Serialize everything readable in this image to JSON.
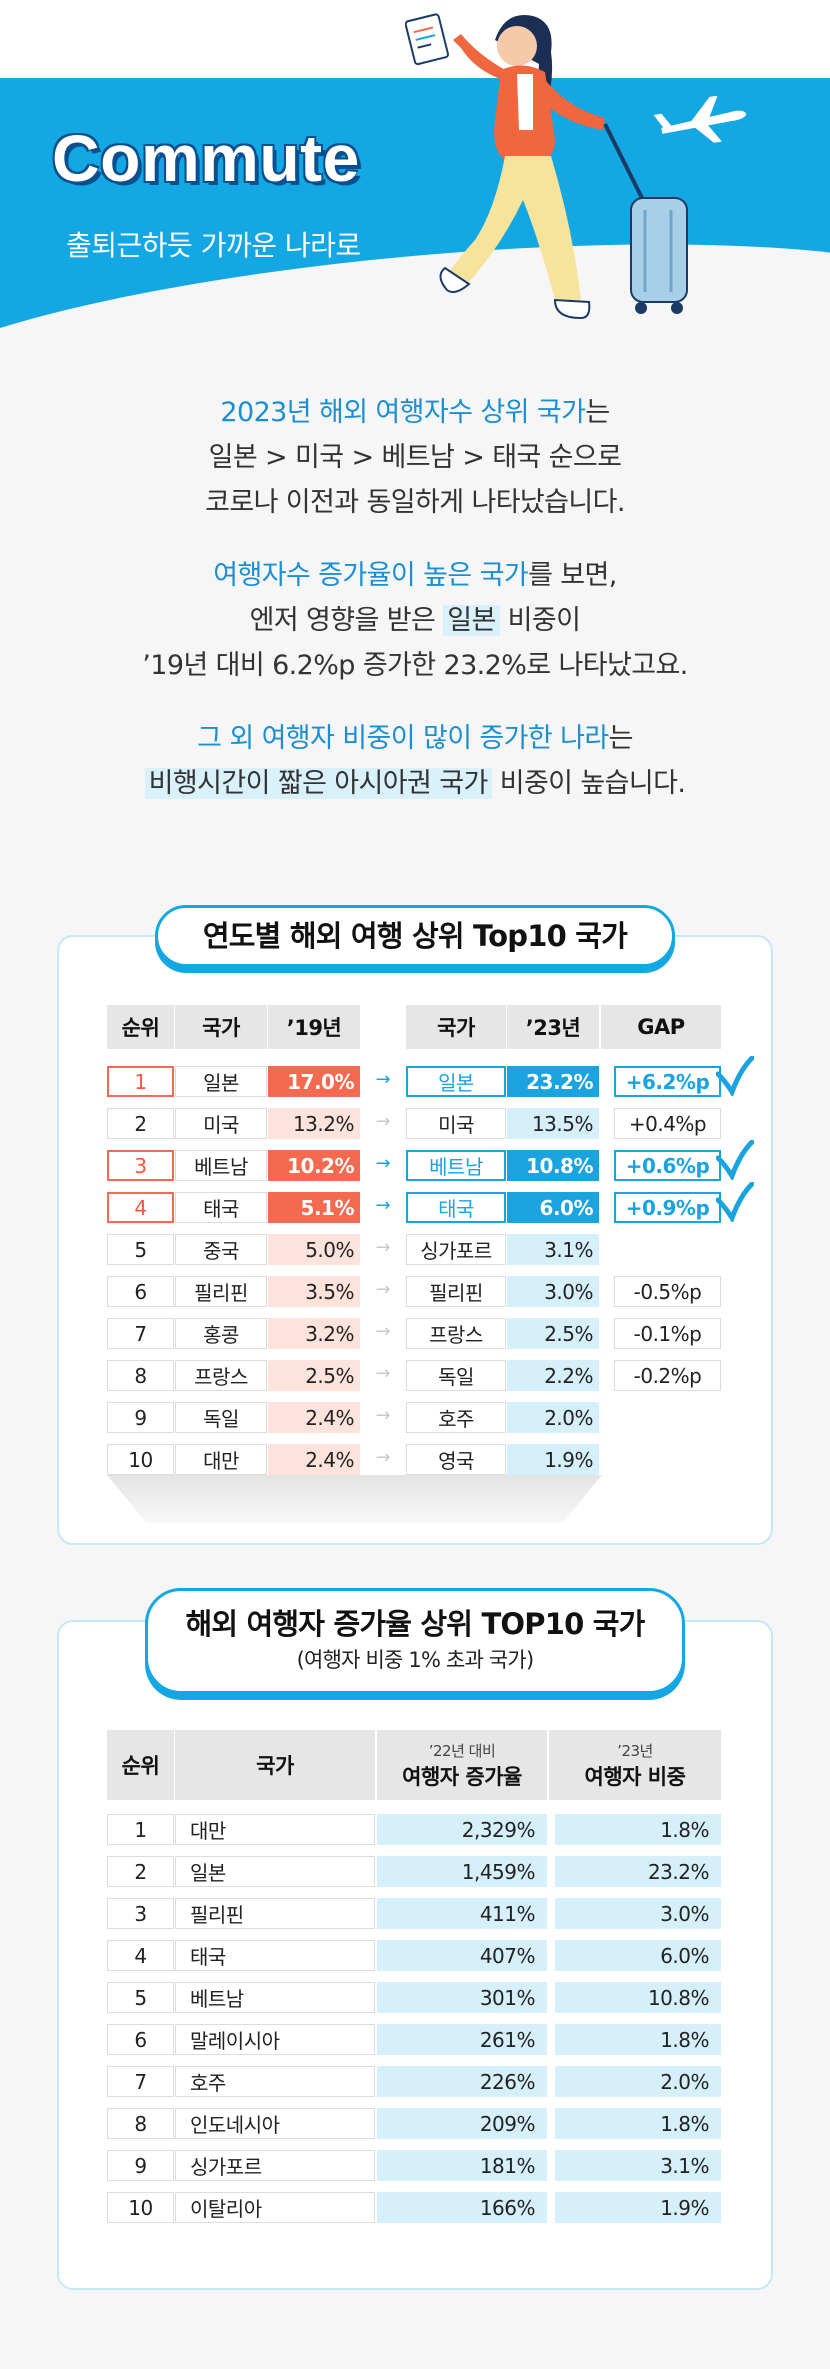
{
  "header": {
    "title": "Commute",
    "subtitle": "출퇴근하듯 가까운 나라로"
  },
  "intro": {
    "p1": {
      "l1a": "2023년 해외 여행자수 상위 국가",
      "l1b": "는",
      "l2": "일본 > 미국 > 베트남 > 태국 순으로",
      "l3": "코로나 이전과 동일하게 나타났습니다."
    },
    "p2": {
      "l1a": "여행자수 증가율이 높은 국가",
      "l1b": "를 보면,",
      "l2a": "엔저 영향을 받은 ",
      "l2b": "일본",
      "l2c": " 비중이",
      "l3": "’19년 대비 6.2%p 증가한 23.2%로 나타났고요."
    },
    "p3": {
      "l1a": "그 외 여행자 비중이 많이 증가한 나라",
      "l1b": "는",
      "l2a": "비행시간이 짧은 아시아권 국가",
      "l2b": " 비중이 높습니다."
    }
  },
  "table1": {
    "title": "연도별 해외 여행 상위 Top10 국가",
    "headers": {
      "rank": "순위",
      "country19": "국가",
      "y19": "’19년",
      "country23": "국가",
      "y23": "’23년",
      "gap": "GAP"
    },
    "rows": [
      {
        "rank": "1",
        "c19": "일본",
        "v19": "17.0%",
        "c23": "일본",
        "v23": "23.2%",
        "gap": "+6.2%p"
      },
      {
        "rank": "2",
        "c19": "미국",
        "v19": "13.2%",
        "c23": "미국",
        "v23": "13.5%",
        "gap": "+0.4%p"
      },
      {
        "rank": "3",
        "c19": "베트남",
        "v19": "10.2%",
        "c23": "베트남",
        "v23": "10.8%",
        "gap": "+0.6%p"
      },
      {
        "rank": "4",
        "c19": "태국",
        "v19": "5.1%",
        "c23": "태국",
        "v23": "6.0%",
        "gap": "+0.9%p"
      },
      {
        "rank": "5",
        "c19": "중국",
        "v19": "5.0%",
        "c23": "싱가포르",
        "v23": "3.1%",
        "gap": ""
      },
      {
        "rank": "6",
        "c19": "필리핀",
        "v19": "3.5%",
        "c23": "필리핀",
        "v23": "3.0%",
        "gap": "-0.5%p"
      },
      {
        "rank": "7",
        "c19": "홍콩",
        "v19": "3.2%",
        "c23": "프랑스",
        "v23": "2.5%",
        "gap": "-0.1%p"
      },
      {
        "rank": "8",
        "c19": "프랑스",
        "v19": "2.5%",
        "c23": "독일",
        "v23": "2.2%",
        "gap": "-0.2%p"
      },
      {
        "rank": "9",
        "c19": "독일",
        "v19": "2.4%",
        "c23": "호주",
        "v23": "2.0%",
        "gap": ""
      },
      {
        "rank": "10",
        "c19": "대만",
        "v19": "2.4%",
        "c23": "영국",
        "v23": "1.9%",
        "gap": ""
      }
    ]
  },
  "table2": {
    "title": "해외 여행자 증가율 상위 TOP10 국가",
    "subtitle": "(여행자 비중 1% 초과 국가)",
    "headers": {
      "rank": "순위",
      "country": "국가",
      "growth_sm": "’22년 대비",
      "growth_lg": "여행자 증가율",
      "share_sm": "’23년",
      "share_lg": "여행자 비중"
    },
    "rows": [
      {
        "rank": "1",
        "country": "대만",
        "growth": "2,329%",
        "share": "1.8%"
      },
      {
        "rank": "2",
        "country": "일본",
        "growth": "1,459%",
        "share": "23.2%"
      },
      {
        "rank": "3",
        "country": "필리핀",
        "growth": "411%",
        "share": "3.0%"
      },
      {
        "rank": "4",
        "country": "태국",
        "growth": "407%",
        "share": "6.0%"
      },
      {
        "rank": "5",
        "country": "베트남",
        "growth": "301%",
        "share": "10.8%"
      },
      {
        "rank": "6",
        "country": "말레이시아",
        "growth": "261%",
        "share": "1.8%"
      },
      {
        "rank": "7",
        "country": "호주",
        "growth": "226%",
        "share": "2.0%"
      },
      {
        "rank": "8",
        "country": "인도네시아",
        "growth": "209%",
        "share": "1.8%"
      },
      {
        "rank": "9",
        "country": "싱가포르",
        "growth": "181%",
        "share": "3.1%"
      },
      {
        "rank": "10",
        "country": "이탈리아",
        "growth": "166%",
        "share": "1.9%"
      }
    ]
  },
  "colors": {
    "accent": "#13a7e3",
    "highlight_red": "#f36a50",
    "navy": "#0c4f8f"
  }
}
